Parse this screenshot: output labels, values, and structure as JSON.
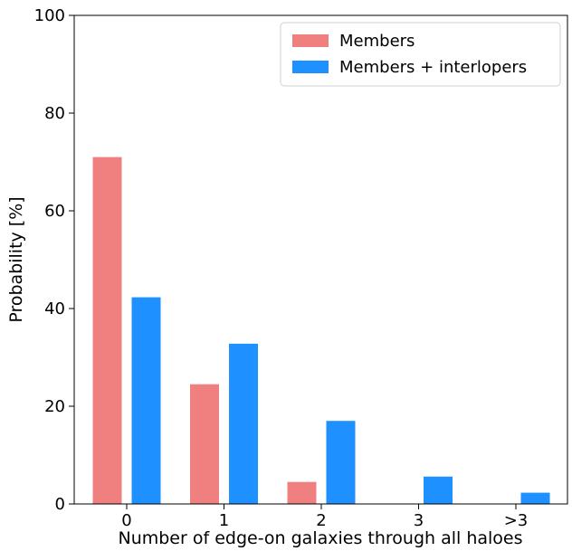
{
  "chart_data": {
    "type": "bar",
    "title": "",
    "xlabel": "Number of edge-on galaxies through all haloes",
    "ylabel": "Probability [%]",
    "ylim": [
      0,
      100
    ],
    "yticks": [
      0,
      20,
      40,
      60,
      80,
      100
    ],
    "categories": [
      "0",
      "1",
      "2",
      "3",
      ">3"
    ],
    "series": [
      {
        "name": "Members",
        "color": "#f08080",
        "values": [
          71.0,
          24.5,
          4.5,
          0,
          0
        ]
      },
      {
        "name": "Members + interlopers",
        "color": "#1e90ff",
        "values": [
          42.3,
          32.8,
          17.0,
          5.6,
          2.3
        ]
      }
    ],
    "legend_position": "top-right",
    "grid": false
  }
}
